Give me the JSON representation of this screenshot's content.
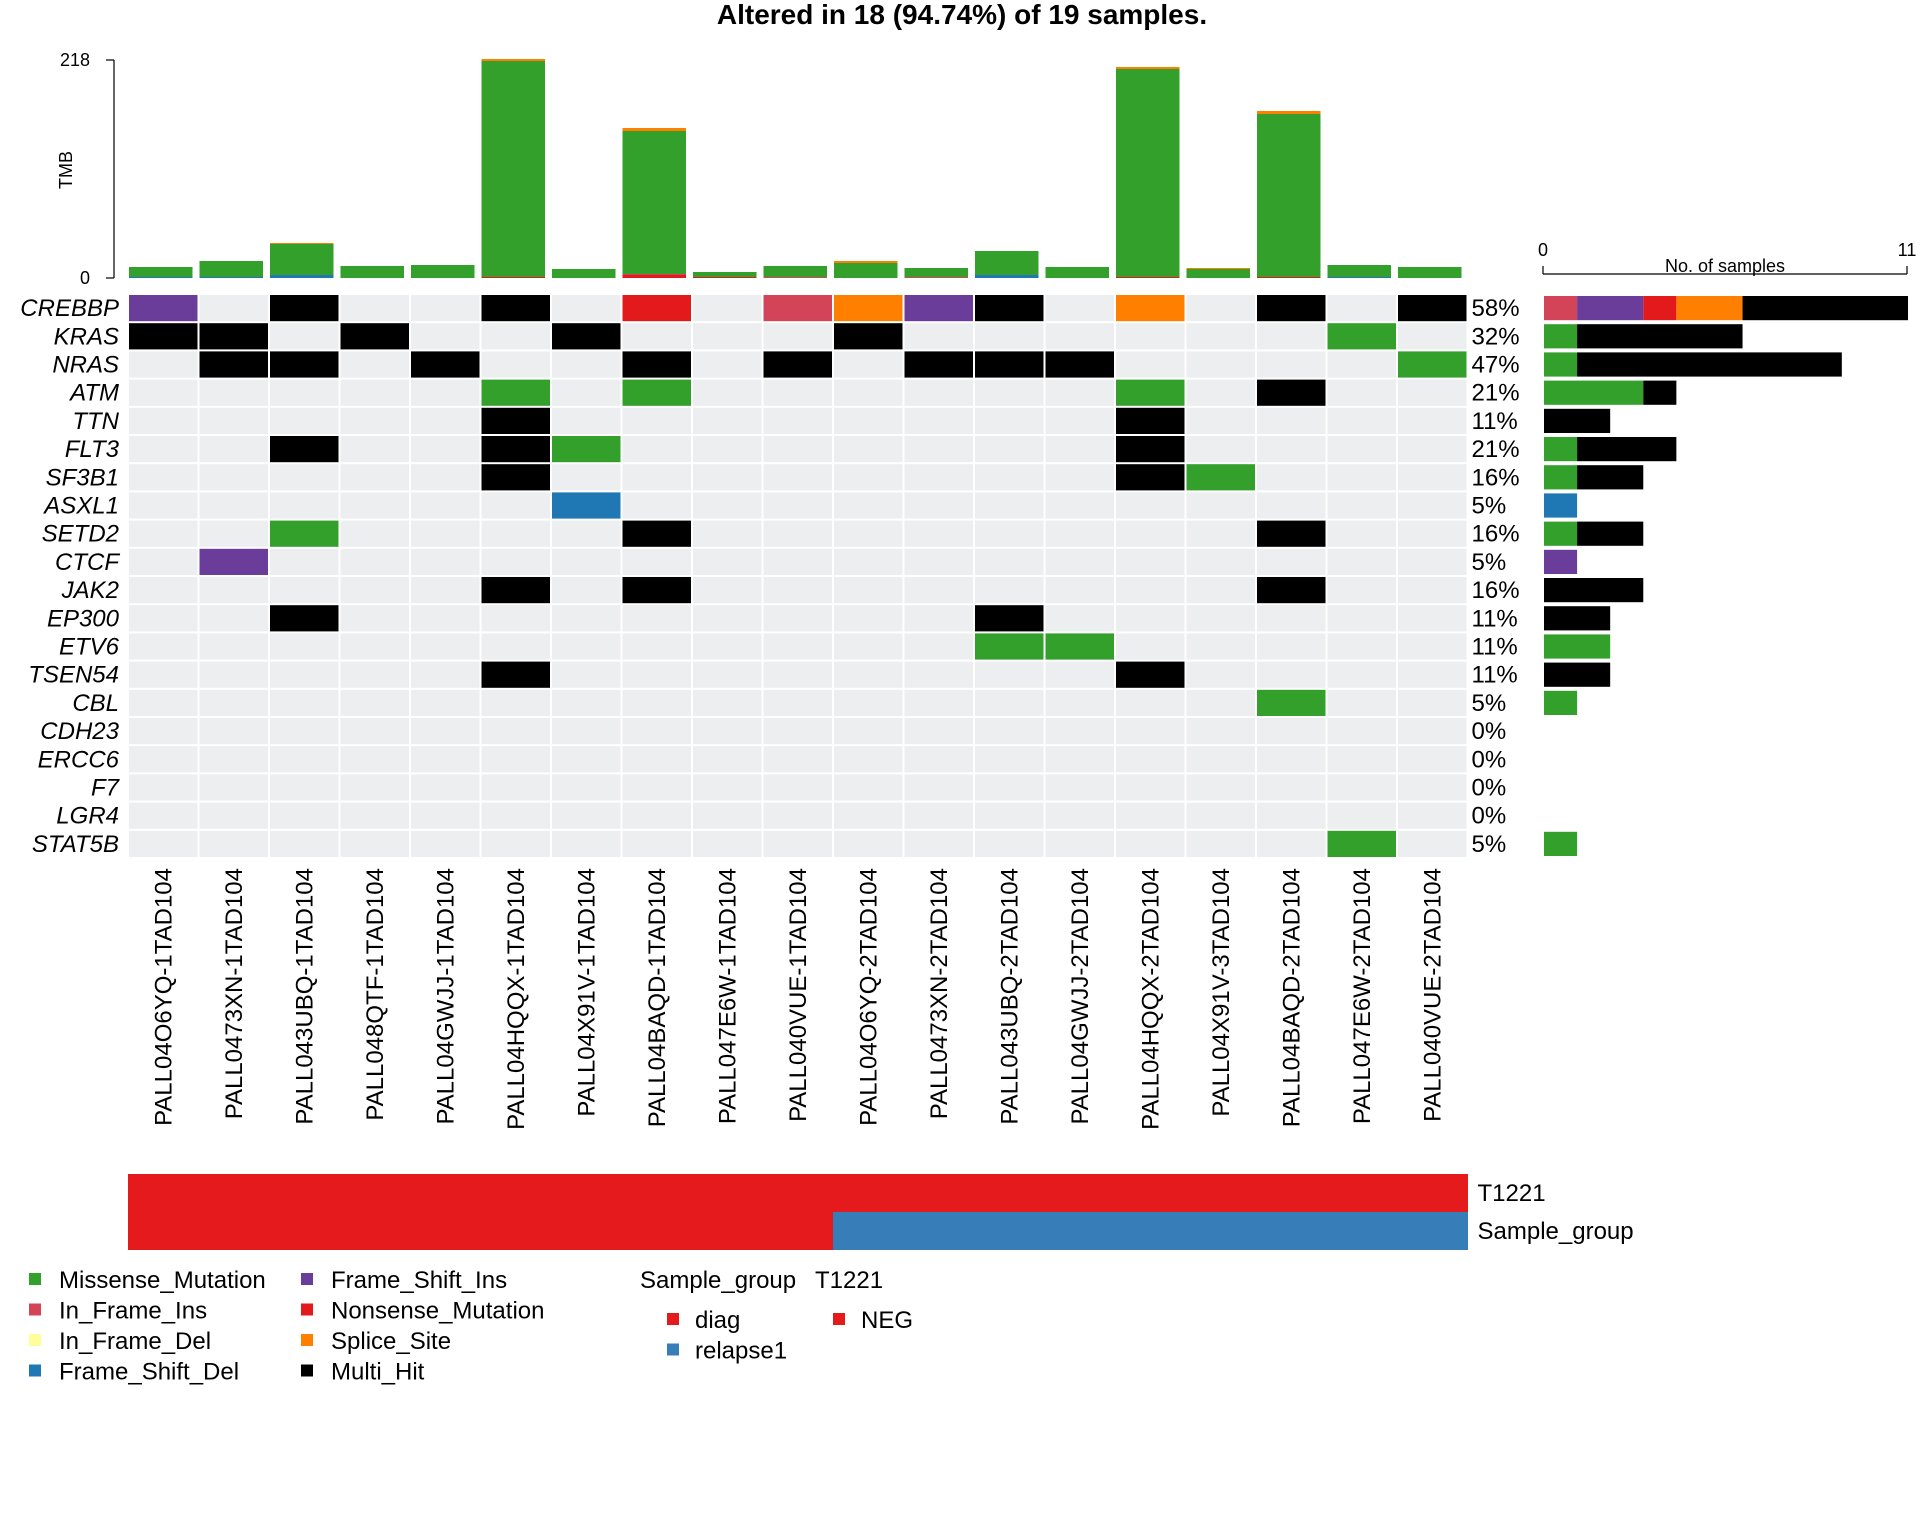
{
  "chart_data": {
    "type": "heatmap",
    "title": "Altered in 18 (94.74%) of 19 samples.",
    "tmb_axis": {
      "label": "TMB",
      "max": 218,
      "min": 0
    },
    "right_axis": {
      "label": "No. of samples",
      "min": 0,
      "max": 11
    },
    "colors": {
      "Missense_Mutation": "#33a02c",
      "In_Frame_Ins": "#d44459",
      "In_Frame_Del": "#ffff99",
      "Frame_Shift_Del": "#1f78b4",
      "Frame_Shift_Ins": "#6a3d9a",
      "Nonsense_Mutation": "#e31a1c",
      "Splice_Site": "#ff7f00",
      "Multi_Hit": "#000000",
      "empty": "#eceeef",
      "diag": "#e41a1c",
      "relapse1": "#377eb8",
      "NEG": "#e41a1c"
    },
    "samples": [
      "PALL04O6YQ-1TAD104",
      "PALL0473XN-1TAD104",
      "PALL043UBQ-1TAD104",
      "PALL048QTF-1TAD104",
      "PALL04GWJJ-1TAD104",
      "PALL04HQQX-1TAD104",
      "PALL04X91V-1TAD104",
      "PALL04BAQD-1TAD104",
      "PALL047E6W-1TAD104",
      "PALL040VUE-1TAD104",
      "PALL04O6YQ-2TAD104",
      "PALL0473XN-2TAD104",
      "PALL043UBQ-2TAD104",
      "PALL04GWJJ-2TAD104",
      "PALL04HQQX-2TAD104",
      "PALL04X91V-3TAD104",
      "PALL04BAQD-2TAD104",
      "PALL047E6W-2TAD104",
      "PALL040VUE-2TAD104"
    ],
    "tmb": [
      {
        "Missense_Mutation": 10,
        "Frame_Shift_Del": 1
      },
      {
        "Missense_Mutation": 16,
        "Frame_Shift_Del": 1
      },
      {
        "Missense_Mutation": 31,
        "Frame_Shift_Del": 3,
        "Splice_Site": 1
      },
      {
        "Missense_Mutation": 12
      },
      {
        "Missense_Mutation": 13
      },
      {
        "Missense_Mutation": 216,
        "Splice_Site": 2,
        "Nonsense_Mutation": 1
      },
      {
        "Missense_Mutation": 9
      },
      {
        "Missense_Mutation": 143,
        "Nonsense_Mutation": 3,
        "Splice_Site": 3,
        "In_Frame_Ins": 1
      },
      {
        "Missense_Mutation": 5,
        "Nonsense_Mutation": 1
      },
      {
        "Missense_Mutation": 11,
        "In_Frame_Ins": 1
      },
      {
        "Missense_Mutation": 15,
        "Splice_Site": 2
      },
      {
        "Missense_Mutation": 9,
        "In_Frame_Ins": 1
      },
      {
        "Missense_Mutation": 24,
        "Frame_Shift_Del": 3
      },
      {
        "Missense_Mutation": 11
      },
      {
        "Missense_Mutation": 208,
        "Splice_Site": 2,
        "Nonsense_Mutation": 1
      },
      {
        "Missense_Mutation": 9,
        "Splice_Site": 1
      },
      {
        "Missense_Mutation": 163,
        "Splice_Site": 3,
        "Nonsense_Mutation": 1
      },
      {
        "Missense_Mutation": 12,
        "Frame_Shift_Del": 1
      },
      {
        "Missense_Mutation": 11
      }
    ],
    "genes": [
      {
        "name": "CREBBP",
        "pct": "58%",
        "cells": {
          "0": "Frame_Shift_Ins",
          "2": "Multi_Hit",
          "5": "Multi_Hit",
          "7": "Nonsense_Mutation",
          "9": "In_Frame_Ins",
          "10": "Splice_Site",
          "11": "Frame_Shift_Ins",
          "12": "Multi_Hit",
          "14": "Splice_Site",
          "16": "Multi_Hit",
          "18": "Multi_Hit"
        },
        "counts": [
          [
            "In_Frame_Ins",
            1
          ],
          [
            "Frame_Shift_Ins",
            2
          ],
          [
            "Nonsense_Mutation",
            1
          ],
          [
            "Splice_Site",
            2
          ],
          [
            "Multi_Hit",
            5
          ]
        ]
      },
      {
        "name": "KRAS",
        "pct": "32%",
        "cells": {
          "0": "Multi_Hit",
          "1": "Multi_Hit",
          "3": "Multi_Hit",
          "6": "Multi_Hit",
          "10": "Multi_Hit",
          "17": "Missense_Mutation"
        },
        "counts": [
          [
            "Missense_Mutation",
            1
          ],
          [
            "Multi_Hit",
            5
          ]
        ]
      },
      {
        "name": "NRAS",
        "pct": "47%",
        "cells": {
          "1": "Multi_Hit",
          "2": "Multi_Hit",
          "4": "Multi_Hit",
          "7": "Multi_Hit",
          "9": "Multi_Hit",
          "11": "Multi_Hit",
          "12": "Multi_Hit",
          "13": "Multi_Hit",
          "18": "Missense_Mutation"
        },
        "counts": [
          [
            "Missense_Mutation",
            1
          ],
          [
            "Multi_Hit",
            8
          ]
        ]
      },
      {
        "name": "ATM",
        "pct": "21%",
        "cells": {
          "5": "Missense_Mutation",
          "7": "Missense_Mutation",
          "14": "Missense_Mutation",
          "16": "Multi_Hit"
        },
        "counts": [
          [
            "Missense_Mutation",
            3
          ],
          [
            "Multi_Hit",
            1
          ]
        ]
      },
      {
        "name": "TTN",
        "pct": "11%",
        "cells": {
          "5": "Multi_Hit",
          "14": "Multi_Hit"
        },
        "counts": [
          [
            "Multi_Hit",
            2
          ]
        ]
      },
      {
        "name": "FLT3",
        "pct": "21%",
        "cells": {
          "2": "Multi_Hit",
          "5": "Multi_Hit",
          "6": "Missense_Mutation",
          "14": "Multi_Hit"
        },
        "counts": [
          [
            "Missense_Mutation",
            1
          ],
          [
            "Multi_Hit",
            3
          ]
        ]
      },
      {
        "name": "SF3B1",
        "pct": "16%",
        "cells": {
          "5": "Multi_Hit",
          "14": "Multi_Hit",
          "15": "Missense_Mutation"
        },
        "counts": [
          [
            "Missense_Mutation",
            1
          ],
          [
            "Multi_Hit",
            2
          ]
        ]
      },
      {
        "name": "ASXL1",
        "pct": "5%",
        "cells": {
          "6": "Frame_Shift_Del"
        },
        "counts": [
          [
            "Frame_Shift_Del",
            1
          ]
        ]
      },
      {
        "name": "SETD2",
        "pct": "16%",
        "cells": {
          "2": "Missense_Mutation",
          "7": "Multi_Hit",
          "16": "Multi_Hit"
        },
        "counts": [
          [
            "Missense_Mutation",
            1
          ],
          [
            "Multi_Hit",
            2
          ]
        ]
      },
      {
        "name": "CTCF",
        "pct": "5%",
        "cells": {
          "1": "Frame_Shift_Ins"
        },
        "counts": [
          [
            "Frame_Shift_Ins",
            1
          ]
        ]
      },
      {
        "name": "JAK2",
        "pct": "16%",
        "cells": {
          "5": "Multi_Hit",
          "7": "Multi_Hit",
          "16": "Multi_Hit"
        },
        "counts": [
          [
            "Multi_Hit",
            3
          ]
        ]
      },
      {
        "name": "EP300",
        "pct": "11%",
        "cells": {
          "2": "Multi_Hit",
          "12": "Multi_Hit"
        },
        "counts": [
          [
            "Multi_Hit",
            2
          ]
        ]
      },
      {
        "name": "ETV6",
        "pct": "11%",
        "cells": {
          "12": "Missense_Mutation",
          "13": "Missense_Mutation"
        },
        "counts": [
          [
            "Missense_Mutation",
            2
          ]
        ]
      },
      {
        "name": "TSEN54",
        "pct": "11%",
        "cells": {
          "5": "Multi_Hit",
          "14": "Multi_Hit"
        },
        "counts": [
          [
            "Multi_Hit",
            2
          ]
        ]
      },
      {
        "name": "CBL",
        "pct": "5%",
        "cells": {
          "16": "Missense_Mutation"
        },
        "counts": [
          [
            "Missense_Mutation",
            1
          ]
        ]
      },
      {
        "name": "CDH23",
        "pct": "0%",
        "cells": {},
        "counts": []
      },
      {
        "name": "ERCC6",
        "pct": "0%",
        "cells": {},
        "counts": []
      },
      {
        "name": "F7",
        "pct": "0%",
        "cells": {},
        "counts": []
      },
      {
        "name": "LGR4",
        "pct": "0%",
        "cells": {},
        "counts": []
      },
      {
        "name": "STAT5B",
        "pct": "5%",
        "cells": {
          "17": "Missense_Mutation"
        },
        "counts": [
          [
            "Missense_Mutation",
            1
          ]
        ]
      }
    ],
    "annotations": [
      {
        "name": "T1221",
        "values": [
          "NEG",
          "NEG",
          "NEG",
          "NEG",
          "NEG",
          "NEG",
          "NEG",
          "NEG",
          "NEG",
          "NEG",
          "NEG",
          "NEG",
          "NEG",
          "NEG",
          "NEG",
          "NEG",
          "NEG",
          "NEG",
          "NEG"
        ]
      },
      {
        "name": "Sample_group",
        "values": [
          "diag",
          "diag",
          "diag",
          "diag",
          "diag",
          "diag",
          "diag",
          "diag",
          "diag",
          "diag",
          "relapse1",
          "relapse1",
          "relapse1",
          "relapse1",
          "relapse1",
          "relapse1",
          "relapse1",
          "relapse1",
          "relapse1"
        ]
      }
    ],
    "legend": {
      "variant_col1": [
        "Missense_Mutation",
        "In_Frame_Ins",
        "In_Frame_Del",
        "Frame_Shift_Del"
      ],
      "variant_col2": [
        "Frame_Shift_Ins",
        "Nonsense_Mutation",
        "Splice_Site",
        "Multi_Hit"
      ],
      "annotation_titles": [
        "Sample_group",
        "T1221"
      ],
      "sample_group_items": [
        "diag",
        "relapse1"
      ],
      "t1221_items": [
        "NEG"
      ]
    }
  }
}
